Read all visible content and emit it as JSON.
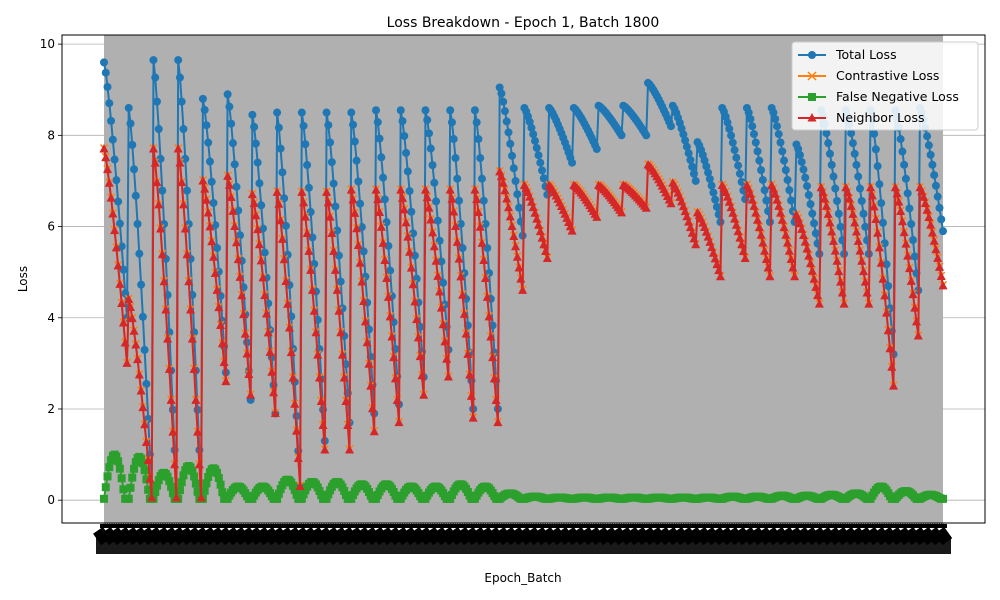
{
  "chart_data": {
    "type": "line",
    "title": "Loss Breakdown - Epoch 1, Batch 1800",
    "xlabel": "Epoch_Batch",
    "ylabel": "Loss",
    "ylim": [
      -0.5,
      10.2
    ],
    "yticks": [
      0,
      2,
      4,
      6,
      8,
      10
    ],
    "grid": true,
    "grid_axis": "y",
    "plot_background": "#b0b0b0",
    "x_tick_labels_note": "dense rotated epoch_batch tick labels (illegible)",
    "legend_position": "top-right",
    "series": [
      {
        "name": "Total Loss",
        "color": "#1f77b4",
        "marker": "circle"
      },
      {
        "name": "Contrastive Loss",
        "color": "#ff7f0e",
        "marker": "x"
      },
      {
        "name": "False Negative Loss",
        "color": "#2ca02c",
        "marker": "square"
      },
      {
        "name": "Neighbor Loss",
        "color": "#d62728",
        "marker": "triangle"
      }
    ],
    "cycles": [
      {
        "t0": 9.6,
        "t1": 4.0,
        "n0": 7.7,
        "n1": 3.0,
        "fn": 1.0
      },
      {
        "t0": 8.6,
        "t1": 0.2,
        "n0": 4.4,
        "n1": 0.05,
        "fn": 0.95
      },
      {
        "t0": 9.65,
        "t1": 0.2,
        "n0": 7.7,
        "n1": 0.05,
        "fn": 0.6
      },
      {
        "t0": 9.65,
        "t1": 0.2,
        "n0": 7.7,
        "n1": 0.05,
        "fn": 0.75
      },
      {
        "t0": 8.8,
        "t1": 2.8,
        "n0": 7.0,
        "n1": 2.6,
        "fn": 0.7
      },
      {
        "t0": 8.9,
        "t1": 2.2,
        "n0": 7.1,
        "n1": 2.3,
        "fn": 0.3
      },
      {
        "t0": 8.45,
        "t1": 1.9,
        "n0": 6.7,
        "n1": 1.9,
        "fn": 0.3
      },
      {
        "t0": 8.5,
        "t1": 0.3,
        "n0": 6.75,
        "n1": 0.3,
        "fn": 0.45
      },
      {
        "t0": 8.5,
        "t1": 1.3,
        "n0": 6.75,
        "n1": 1.1,
        "fn": 0.4
      },
      {
        "t0": 8.5,
        "t1": 1.7,
        "n0": 6.75,
        "n1": 1.1,
        "fn": 0.4
      },
      {
        "t0": 8.5,
        "t1": 1.9,
        "n0": 6.8,
        "n1": 1.5,
        "fn": 0.35
      },
      {
        "t0": 8.55,
        "t1": 2.1,
        "n0": 6.8,
        "n1": 1.7,
        "fn": 0.35
      },
      {
        "t0": 8.55,
        "t1": 2.7,
        "n0": 6.8,
        "n1": 2.3,
        "fn": 0.3
      },
      {
        "t0": 8.55,
        "t1": 3.3,
        "n0": 6.8,
        "n1": 2.7,
        "fn": 0.3
      },
      {
        "t0": 8.55,
        "t1": 2.0,
        "n0": 6.8,
        "n1": 1.8,
        "fn": 0.35
      },
      {
        "t0": 8.55,
        "t1": 2.0,
        "n0": 6.8,
        "n1": 1.7,
        "fn": 0.3
      },
      {
        "t0": 9.05,
        "t1": 5.8,
        "n0": 7.2,
        "n1": 4.6,
        "fn": 0.15
      },
      {
        "t0": 8.6,
        "t1": 6.7,
        "n0": 6.9,
        "n1": 5.3,
        "fn": 0.08
      },
      {
        "t0": 8.6,
        "t1": 7.4,
        "n0": 6.9,
        "n1": 5.9,
        "fn": 0.06
      },
      {
        "t0": 8.6,
        "t1": 7.7,
        "n0": 6.9,
        "n1": 6.2,
        "fn": 0.06
      },
      {
        "t0": 8.65,
        "t1": 8.0,
        "n0": 6.9,
        "n1": 6.3,
        "fn": 0.06
      },
      {
        "t0": 8.65,
        "t1": 8.0,
        "n0": 6.9,
        "n1": 6.4,
        "fn": 0.06
      },
      {
        "t0": 9.15,
        "t1": 8.2,
        "n0": 7.35,
        "n1": 6.5,
        "fn": 0.06
      },
      {
        "t0": 8.65,
        "t1": 7.0,
        "n0": 6.95,
        "n1": 5.6,
        "fn": 0.06
      },
      {
        "t0": 7.85,
        "t1": 6.1,
        "n0": 6.3,
        "n1": 4.9,
        "fn": 0.06
      },
      {
        "t0": 8.6,
        "t1": 6.6,
        "n0": 6.9,
        "n1": 5.3,
        "fn": 0.08
      },
      {
        "t0": 8.6,
        "t1": 6.1,
        "n0": 6.9,
        "n1": 4.9,
        "fn": 0.08
      },
      {
        "t0": 8.6,
        "t1": 6.1,
        "n0": 6.9,
        "n1": 4.9,
        "fn": 0.1
      },
      {
        "t0": 7.8,
        "t1": 5.4,
        "n0": 6.25,
        "n1": 4.3,
        "fn": 0.1
      },
      {
        "t0": 8.55,
        "t1": 5.4,
        "n0": 6.85,
        "n1": 4.3,
        "fn": 0.12
      },
      {
        "t0": 8.55,
        "t1": 5.4,
        "n0": 6.85,
        "n1": 4.3,
        "fn": 0.15
      },
      {
        "t0": 8.55,
        "t1": 3.2,
        "n0": 6.85,
        "n1": 2.5,
        "fn": 0.3
      },
      {
        "t0": 8.55,
        "t1": 4.6,
        "n0": 6.85,
        "n1": 3.6,
        "fn": 0.2
      },
      {
        "t0": 8.6,
        "t1": 5.9,
        "n0": 6.85,
        "n1": 4.7,
        "fn": 0.12
      }
    ]
  }
}
